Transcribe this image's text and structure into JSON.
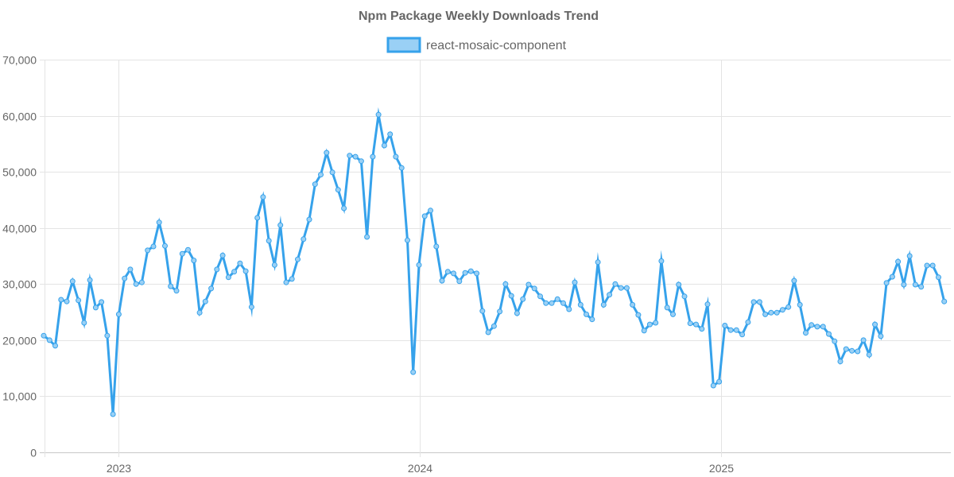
{
  "chart_data": {
    "type": "line",
    "title": "Npm Package Weekly Downloads Trend",
    "xlabel": "",
    "ylabel": "",
    "ylim": [
      0,
      70000
    ],
    "yticks": [
      0,
      10000,
      20000,
      30000,
      40000,
      50000,
      60000,
      70000
    ],
    "ytick_labels": [
      "0",
      "10,000",
      "20,000",
      "30,000",
      "40,000",
      "50,000",
      "60,000",
      "70,000"
    ],
    "x_unit": "week index",
    "xlim": [
      0,
      157
    ],
    "xticks": [
      {
        "label": "2023",
        "x": 13
      },
      {
        "label": "2024",
        "x": 65.1
      },
      {
        "label": "2025",
        "x": 117.4
      }
    ],
    "grid": true,
    "legend": {
      "position": "top-center",
      "entries": [
        "react-mosaic-component"
      ]
    },
    "series": [
      {
        "name": "react-mosaic-component",
        "color": "#36a2eb",
        "fill_color": "#9ad0f5",
        "values": [
          20800,
          20000,
          19000,
          27200,
          26900,
          30500,
          27100,
          23100,
          30700,
          25800,
          26800,
          20800,
          6800,
          24600,
          31000,
          32600,
          30000,
          30300,
          36000,
          36700,
          41000,
          36800,
          29600,
          28800,
          35400,
          36100,
          34200,
          24900,
          26900,
          29200,
          32600,
          35100,
          31200,
          32200,
          33700,
          32300,
          25900,
          41800,
          45500,
          37700,
          33400,
          40500,
          30300,
          30900,
          34400,
          38000,
          41500,
          47800,
          49500,
          53400,
          49900,
          46800,
          43500,
          52900,
          52700,
          51900,
          38400,
          52700,
          60200,
          54700,
          56700,
          52700,
          50700,
          37800,
          14300,
          33400,
          42100,
          43100,
          36700,
          30600,
          32200,
          31900,
          30500,
          32000,
          32300,
          31900,
          25200,
          21400,
          22500,
          25100,
          30000,
          27900,
          24800,
          27300,
          29900,
          29200,
          27800,
          26600,
          26600,
          27300,
          26600,
          25500,
          30300,
          26300,
          24600,
          23700,
          33900,
          26300,
          28100,
          30000,
          29300,
          29300,
          26300,
          24500,
          21700,
          22800,
          23100,
          34100,
          25800,
          24600,
          29900,
          27800,
          23000,
          22800,
          22000,
          26400,
          11900,
          12600,
          22600,
          21800,
          21800,
          21000,
          23200,
          26800,
          26800,
          24600,
          24900,
          24900,
          25400,
          25900,
          30600,
          26300,
          21300,
          22700,
          22400,
          22400,
          21100,
          19800,
          16200,
          18400,
          18100,
          18000,
          20000,
          17400,
          22800,
          20700,
          30200,
          31300,
          34000,
          29900,
          35000,
          29900,
          29500,
          33300,
          33300,
          31200,
          26900
        ]
      }
    ]
  }
}
